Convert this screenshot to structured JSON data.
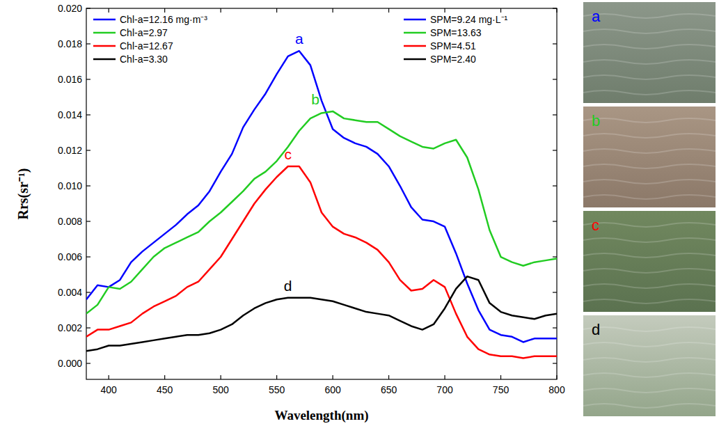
{
  "chart_data": {
    "type": "line",
    "xlabel": "Wavelength(nm)",
    "ylabel": "Rrs(sr⁻¹)",
    "x": [
      380,
      390,
      400,
      410,
      420,
      430,
      440,
      450,
      460,
      470,
      480,
      490,
      500,
      510,
      520,
      530,
      540,
      550,
      560,
      570,
      580,
      590,
      600,
      610,
      620,
      630,
      640,
      650,
      660,
      670,
      680,
      690,
      700,
      710,
      720,
      730,
      740,
      750,
      760,
      770,
      780,
      790,
      800
    ],
    "xlim": [
      380,
      800
    ],
    "xticks": [
      400,
      450,
      500,
      550,
      600,
      650,
      700,
      750,
      800
    ],
    "ylim": [
      -0.0009,
      0.02
    ],
    "yticks": [
      {
        "value": 0.0,
        "label": "0.000"
      },
      {
        "value": 0.002,
        "label": "0.002"
      },
      {
        "value": 0.004,
        "label": "0.004"
      },
      {
        "value": 0.006,
        "label": "0.006"
      },
      {
        "value": 0.008,
        "label": "0.008"
      },
      {
        "value": 0.01,
        "label": "0.010"
      },
      {
        "value": 0.012,
        "label": "0.012"
      },
      {
        "value": 0.014,
        "label": "0.014"
      },
      {
        "value": 0.016,
        "label": "0.016"
      },
      {
        "value": 0.018,
        "label": "0.018"
      },
      {
        "value": 0.02,
        "label": "0.020"
      }
    ],
    "grid": false,
    "legend": "top",
    "series": [
      {
        "name": "Chl-a=12.16 mg·m⁻³",
        "spm": "SPM=9.24 mg·L⁻¹",
        "label": "a",
        "color": "#0000ff",
        "values": [
          0.0036,
          0.0044,
          0.0043,
          0.0047,
          0.0057,
          0.0063,
          0.0068,
          0.0073,
          0.0078,
          0.0084,
          0.0089,
          0.0097,
          0.0108,
          0.0118,
          0.0133,
          0.0143,
          0.0152,
          0.0163,
          0.0173,
          0.0176,
          0.0168,
          0.0148,
          0.0132,
          0.0127,
          0.0124,
          0.0122,
          0.0118,
          0.0111,
          0.01,
          0.0088,
          0.0081,
          0.008,
          0.0077,
          0.0062,
          0.0045,
          0.003,
          0.0019,
          0.0016,
          0.0015,
          0.0012,
          0.0014,
          0.0014,
          0.0014
        ]
      },
      {
        "name": "Chl-a=2.97",
        "spm": "SPM=13.63",
        "label": "b",
        "color": "#22cc22",
        "values": [
          0.0028,
          0.0033,
          0.0043,
          0.0042,
          0.0046,
          0.0053,
          0.006,
          0.0065,
          0.0068,
          0.0071,
          0.0074,
          0.008,
          0.0085,
          0.0091,
          0.0097,
          0.0104,
          0.0108,
          0.0114,
          0.0122,
          0.0131,
          0.0138,
          0.0141,
          0.0142,
          0.0138,
          0.0137,
          0.0136,
          0.0136,
          0.0132,
          0.0128,
          0.0125,
          0.0122,
          0.0121,
          0.0124,
          0.0126,
          0.0116,
          0.0098,
          0.0075,
          0.006,
          0.0057,
          0.0055,
          0.0057,
          0.0058,
          0.0059
        ]
      },
      {
        "name": "Chl-a=12.67",
        "spm": "SPM=4.51",
        "label": "c",
        "color": "#ff0000",
        "values": [
          0.0015,
          0.0019,
          0.0019,
          0.0021,
          0.0023,
          0.0028,
          0.0032,
          0.0035,
          0.0038,
          0.0043,
          0.0046,
          0.0053,
          0.006,
          0.007,
          0.008,
          0.009,
          0.0098,
          0.0105,
          0.0111,
          0.0111,
          0.0102,
          0.0085,
          0.0077,
          0.0073,
          0.0071,
          0.0068,
          0.0064,
          0.0057,
          0.0047,
          0.0041,
          0.0042,
          0.0047,
          0.0043,
          0.0028,
          0.0015,
          0.0008,
          0.0005,
          0.0004,
          0.0004,
          0.0003,
          0.0004,
          0.0004,
          0.0004
        ]
      },
      {
        "name": "Chl-a=3.30",
        "spm": "SPM=2.40",
        "label": "d",
        "color": "#000000",
        "values": [
          0.0007,
          0.0008,
          0.001,
          0.001,
          0.0011,
          0.0012,
          0.0013,
          0.0014,
          0.0015,
          0.0016,
          0.0016,
          0.0017,
          0.0019,
          0.0022,
          0.0027,
          0.0031,
          0.0034,
          0.0036,
          0.0037,
          0.0037,
          0.0037,
          0.0036,
          0.0035,
          0.0033,
          0.0031,
          0.0029,
          0.0028,
          0.0027,
          0.0024,
          0.0021,
          0.0019,
          0.0022,
          0.0031,
          0.0042,
          0.0049,
          0.0047,
          0.0034,
          0.0029,
          0.0027,
          0.0026,
          0.0025,
          0.0027,
          0.0028
        ]
      }
    ],
    "photos": [
      "a",
      "b",
      "c",
      "d"
    ]
  }
}
